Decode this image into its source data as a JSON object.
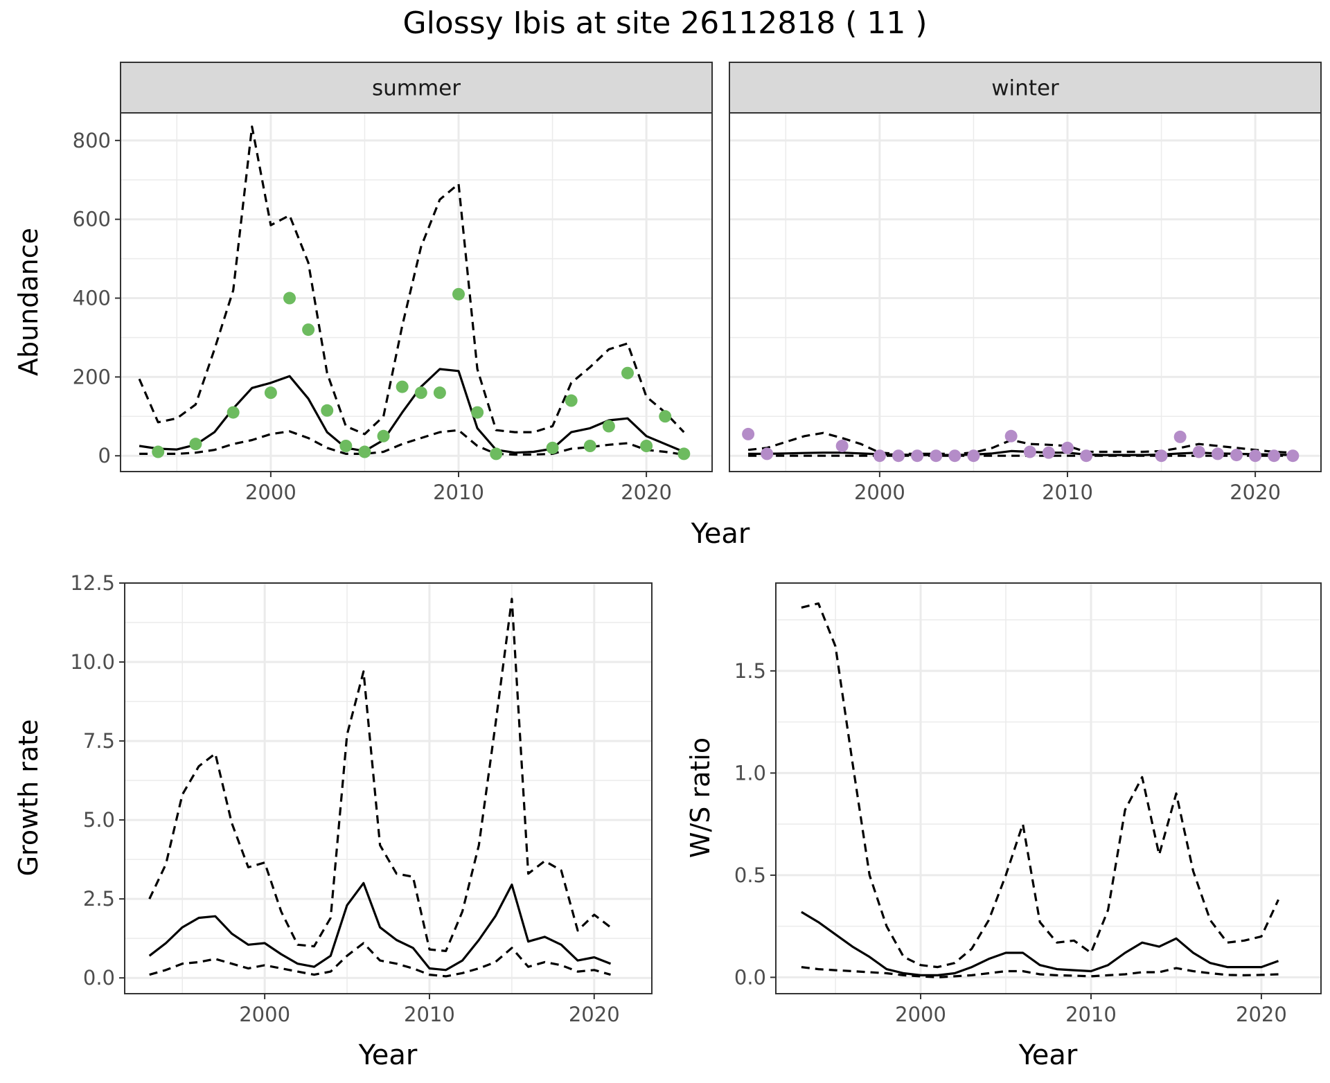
{
  "title": "Glossy Ibis at site 26112818 ( 11 )",
  "colors": {
    "summer_points": "#6dbb5f",
    "winter_points": "#b48cc8",
    "strip_bg": "#d9d9d9",
    "grid": "#ebebeb",
    "line": "#000000"
  },
  "chart_data": [
    {
      "type": "line",
      "panel": "summer",
      "strip_label": "summer",
      "xlabel": "Year",
      "ylabel": "Abundance",
      "xlim": [
        1992,
        2023.5
      ],
      "ylim": [
        -40,
        870
      ],
      "xticks": [
        2000,
        2010,
        2020
      ],
      "yticks": [
        0,
        200,
        400,
        600,
        800
      ],
      "grid": true,
      "line_years": [
        1993,
        1994,
        1995,
        1996,
        1997,
        1998,
        1999,
        2000,
        2001,
        2002,
        2003,
        2004,
        2005,
        2006,
        2007,
        2008,
        2009,
        2010,
        2011,
        2012,
        2013,
        2014,
        2015,
        2016,
        2017,
        2018,
        2019,
        2020,
        2021,
        2022
      ],
      "series": [
        {
          "style": "solid",
          "values": [
            25,
            18,
            16,
            28,
            60,
            120,
            172,
            185,
            202,
            145,
            60,
            20,
            12,
            40,
            110,
            175,
            220,
            215,
            70,
            15,
            8,
            10,
            18,
            60,
            70,
            90,
            95,
            50,
            30,
            10
          ]
        },
        {
          "style": "dashed",
          "values": [
            195,
            85,
            95,
            130,
            270,
            420,
            835,
            585,
            610,
            490,
            210,
            75,
            55,
            100,
            330,
            530,
            650,
            690,
            220,
            65,
            60,
            60,
            75,
            185,
            225,
            270,
            285,
            150,
            110,
            60
          ]
        },
        {
          "style": "dashed",
          "values": [
            5,
            5,
            5,
            8,
            15,
            30,
            40,
            55,
            62,
            45,
            20,
            5,
            5,
            10,
            30,
            45,
            60,
            65,
            25,
            5,
            3,
            3,
            5,
            18,
            22,
            28,
            32,
            15,
            10,
            3
          ]
        }
      ],
      "points": {
        "x": [
          1994,
          1996,
          1998,
          2000,
          2001,
          2002,
          2003,
          2004,
          2005,
          2006,
          2007,
          2008,
          2009,
          2010,
          2011,
          2012,
          2015,
          2016,
          2017,
          2018,
          2019,
          2020,
          2021,
          2022
        ],
        "y": [
          10,
          30,
          110,
          160,
          400,
          320,
          115,
          25,
          10,
          50,
          175,
          160,
          160,
          410,
          110,
          5,
          20,
          140,
          25,
          75,
          210,
          25,
          100,
          5
        ]
      }
    },
    {
      "type": "line",
      "panel": "winter",
      "strip_label": "winter",
      "xlabel": "Year",
      "ylabel": "Abundance",
      "xlim": [
        1992,
        2023.5
      ],
      "ylim": [
        -40,
        870
      ],
      "xticks": [
        2000,
        2010,
        2020
      ],
      "yticks": [
        0,
        200,
        400,
        600,
        800
      ],
      "grid": true,
      "line_years": [
        1993,
        1994,
        1995,
        1996,
        1997,
        1998,
        1999,
        2000,
        2001,
        2002,
        2003,
        2004,
        2005,
        2006,
        2007,
        2008,
        2009,
        2010,
        2011,
        2012,
        2013,
        2014,
        2015,
        2016,
        2017,
        2018,
        2019,
        2020,
        2021,
        2022
      ],
      "series": [
        {
          "style": "solid",
          "values": [
            5,
            5,
            6,
            7,
            8,
            8,
            6,
            4,
            3,
            2,
            2,
            2,
            3,
            6,
            12,
            10,
            8,
            8,
            3,
            2,
            2,
            2,
            3,
            6,
            8,
            6,
            5,
            4,
            3,
            2
          ]
        },
        {
          "style": "dashed",
          "values": [
            15,
            20,
            35,
            50,
            58,
            45,
            30,
            8,
            5,
            5,
            5,
            5,
            8,
            20,
            40,
            30,
            28,
            25,
            10,
            10,
            10,
            10,
            12,
            20,
            30,
            25,
            20,
            15,
            10,
            8
          ]
        },
        {
          "style": "dashed",
          "values": [
            0,
            0,
            0,
            0,
            0,
            0,
            0,
            0,
            0,
            0,
            0,
            0,
            0,
            0,
            0,
            0,
            0,
            0,
            0,
            0,
            0,
            0,
            0,
            0,
            0,
            0,
            0,
            0,
            0,
            0
          ]
        }
      ],
      "points": {
        "x": [
          1993,
          1994,
          1998,
          2000,
          2001,
          2002,
          2003,
          2004,
          2005,
          2007,
          2008,
          2009,
          2010,
          2011,
          2015,
          2016,
          2017,
          2018,
          2019,
          2020,
          2021,
          2022
        ],
        "y": [
          55,
          5,
          25,
          0,
          0,
          0,
          0,
          0,
          0,
          50,
          10,
          8,
          20,
          0,
          0,
          48,
          10,
          5,
          2,
          0,
          0,
          0
        ]
      }
    },
    {
      "type": "line",
      "panel": "growth",
      "xlabel": "Year",
      "ylabel": "Growth rate",
      "xlim": [
        1991.5,
        2023.5
      ],
      "ylim": [
        -0.5,
        12.5
      ],
      "xticks": [
        2000,
        2010,
        2020
      ],
      "yticks": [
        0.0,
        2.5,
        5.0,
        7.5,
        10.0,
        12.5
      ],
      "ytick_labels": [
        "0.0",
        "2.5",
        "5.0",
        "7.5",
        "10.0",
        "12.5"
      ],
      "grid": true,
      "x": [
        1993,
        1994,
        1995,
        1996,
        1997,
        1998,
        1999,
        2000,
        2001,
        2002,
        2003,
        2004,
        2005,
        2006,
        2007,
        2008,
        2009,
        2010,
        2011,
        2012,
        2013,
        2014,
        2015,
        2016,
        2017,
        2018,
        2019,
        2020,
        2021
      ],
      "series": [
        {
          "style": "solid",
          "values": [
            0.7,
            1.1,
            1.6,
            1.9,
            1.95,
            1.4,
            1.05,
            1.1,
            0.75,
            0.45,
            0.35,
            0.7,
            2.3,
            3.0,
            1.6,
            1.2,
            0.95,
            0.3,
            0.25,
            0.55,
            1.2,
            1.95,
            2.95,
            1.15,
            1.3,
            1.05,
            0.55,
            0.65,
            0.45
          ]
        },
        {
          "style": "dashed",
          "values": [
            2.5,
            3.6,
            5.8,
            6.7,
            7.1,
            4.9,
            3.5,
            3.65,
            2.1,
            1.05,
            1.0,
            1.9,
            7.7,
            9.7,
            4.2,
            3.3,
            3.2,
            0.9,
            0.85,
            2.1,
            4.2,
            8.0,
            12.0,
            3.3,
            3.7,
            3.4,
            1.5,
            2.0,
            1.6
          ]
        },
        {
          "style": "dashed",
          "values": [
            0.1,
            0.25,
            0.45,
            0.5,
            0.6,
            0.45,
            0.3,
            0.4,
            0.3,
            0.2,
            0.1,
            0.2,
            0.7,
            1.1,
            0.55,
            0.45,
            0.3,
            0.1,
            0.05,
            0.15,
            0.3,
            0.5,
            0.95,
            0.35,
            0.5,
            0.4,
            0.2,
            0.25,
            0.1
          ]
        }
      ]
    },
    {
      "type": "line",
      "panel": "ratio",
      "xlabel": "Year",
      "ylabel": "W/S ratio",
      "xlim": [
        1991.5,
        2023.5
      ],
      "ylim": [
        -0.08,
        1.93
      ],
      "xticks": [
        2000,
        2010,
        2020
      ],
      "yticks": [
        0.0,
        0.5,
        1.0,
        1.5
      ],
      "ytick_labels": [
        "0.0",
        "0.5",
        "1.0",
        "1.5"
      ],
      "grid": true,
      "x": [
        1993,
        1994,
        1995,
        1996,
        1997,
        1998,
        1999,
        2000,
        2001,
        2002,
        2003,
        2004,
        2005,
        2006,
        2007,
        2008,
        2009,
        2010,
        2011,
        2012,
        2013,
        2014,
        2015,
        2016,
        2017,
        2018,
        2019,
        2020,
        2021
      ],
      "series": [
        {
          "style": "solid",
          "values": [
            0.32,
            0.27,
            0.21,
            0.15,
            0.1,
            0.04,
            0.02,
            0.01,
            0.01,
            0.02,
            0.05,
            0.09,
            0.12,
            0.12,
            0.06,
            0.04,
            0.035,
            0.03,
            0.06,
            0.12,
            0.17,
            0.15,
            0.19,
            0.12,
            0.07,
            0.05,
            0.05,
            0.05,
            0.08
          ]
        },
        {
          "style": "dashed",
          "values": [
            1.81,
            1.83,
            1.62,
            1.05,
            0.5,
            0.25,
            0.1,
            0.06,
            0.05,
            0.07,
            0.14,
            0.28,
            0.5,
            0.75,
            0.27,
            0.17,
            0.18,
            0.12,
            0.33,
            0.82,
            0.98,
            0.6,
            0.9,
            0.52,
            0.28,
            0.17,
            0.18,
            0.2,
            0.38
          ]
        },
        {
          "style": "dashed",
          "values": [
            0.05,
            0.04,
            0.035,
            0.03,
            0.025,
            0.02,
            0.01,
            0.005,
            0.0,
            0.005,
            0.01,
            0.02,
            0.03,
            0.03,
            0.015,
            0.01,
            0.008,
            0.005,
            0.01,
            0.015,
            0.025,
            0.025,
            0.045,
            0.03,
            0.02,
            0.012,
            0.01,
            0.012,
            0.015
          ]
        }
      ]
    }
  ]
}
